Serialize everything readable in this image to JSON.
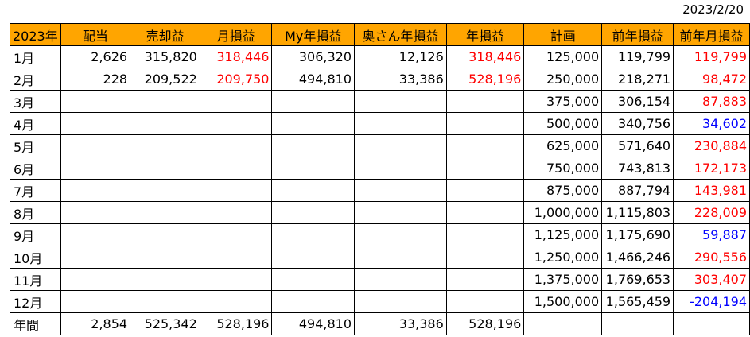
{
  "date": "2023/2/20",
  "headers": [
    "2023年",
    "配当",
    "売却益",
    "月損益",
    "My年損益",
    "奥さん年損益",
    "年損益",
    "計画",
    "前年損益",
    "前年月損益"
  ],
  "rows": [
    {
      "cells": [
        "1月",
        "2,626",
        "315,820",
        "318,446",
        "306,320",
        "12,126",
        "318,446",
        "125,000",
        "119,799",
        "119,799"
      ],
      "colors": [
        "",
        "",
        "",
        "red",
        "",
        "",
        "red",
        "",
        "",
        "red"
      ]
    },
    {
      "cells": [
        "2月",
        "228",
        "209,522",
        "209,750",
        "494,810",
        "33,386",
        "528,196",
        "250,000",
        "218,271",
        "98,472"
      ],
      "colors": [
        "",
        "",
        "",
        "red",
        "",
        "",
        "red",
        "",
        "",
        "red"
      ]
    },
    {
      "cells": [
        "3月",
        "",
        "",
        "",
        "",
        "",
        "",
        "375,000",
        "306,154",
        "87,883"
      ],
      "colors": [
        "",
        "",
        "",
        "",
        "",
        "",
        "",
        "",
        "",
        "red"
      ]
    },
    {
      "cells": [
        "4月",
        "",
        "",
        "",
        "",
        "",
        "",
        "500,000",
        "340,756",
        "34,602"
      ],
      "colors": [
        "",
        "",
        "",
        "",
        "",
        "",
        "",
        "",
        "",
        "blue"
      ]
    },
    {
      "cells": [
        "5月",
        "",
        "",
        "",
        "",
        "",
        "",
        "625,000",
        "571,640",
        "230,884"
      ],
      "colors": [
        "",
        "",
        "",
        "",
        "",
        "",
        "",
        "",
        "",
        "red"
      ]
    },
    {
      "cells": [
        "6月",
        "",
        "",
        "",
        "",
        "",
        "",
        "750,000",
        "743,813",
        "172,173"
      ],
      "colors": [
        "",
        "",
        "",
        "",
        "",
        "",
        "",
        "",
        "",
        "red"
      ]
    },
    {
      "cells": [
        "7月",
        "",
        "",
        "",
        "",
        "",
        "",
        "875,000",
        "887,794",
        "143,981"
      ],
      "colors": [
        "",
        "",
        "",
        "",
        "",
        "",
        "",
        "",
        "",
        "red"
      ]
    },
    {
      "cells": [
        "8月",
        "",
        "",
        "",
        "",
        "",
        "",
        "1,000,000",
        "1,115,803",
        "228,009"
      ],
      "colors": [
        "",
        "",
        "",
        "",
        "",
        "",
        "",
        "",
        "",
        "red"
      ]
    },
    {
      "cells": [
        "9月",
        "",
        "",
        "",
        "",
        "",
        "",
        "1,125,000",
        "1,175,690",
        "59,887"
      ],
      "colors": [
        "",
        "",
        "",
        "",
        "",
        "",
        "",
        "",
        "",
        "blue"
      ]
    },
    {
      "cells": [
        "10月",
        "",
        "",
        "",
        "",
        "",
        "",
        "1,250,000",
        "1,466,246",
        "290,556"
      ],
      "colors": [
        "",
        "",
        "",
        "",
        "",
        "",
        "",
        "",
        "",
        "red"
      ]
    },
    {
      "cells": [
        "11月",
        "",
        "",
        "",
        "",
        "",
        "",
        "1,375,000",
        "1,769,653",
        "303,407"
      ],
      "colors": [
        "",
        "",
        "",
        "",
        "",
        "",
        "",
        "",
        "",
        "red"
      ]
    },
    {
      "cells": [
        "12月",
        "",
        "",
        "",
        "",
        "",
        "",
        "1,500,000",
        "1,565,459",
        "-204,194"
      ],
      "colors": [
        "",
        "",
        "",
        "",
        "",
        "",
        "",
        "",
        "",
        "blue"
      ]
    },
    {
      "cells": [
        "年間",
        "2,854",
        "525,342",
        "528,196",
        "494,810",
        "33,386",
        "528,196",
        "",
        "",
        ""
      ],
      "colors": [
        "",
        "",
        "",
        "",
        "",
        "",
        "",
        "",
        "",
        ""
      ]
    }
  ],
  "colors": {
    "header_bg": "#ffa500",
    "positive": "#ff0000",
    "negative": "#0000ff"
  }
}
